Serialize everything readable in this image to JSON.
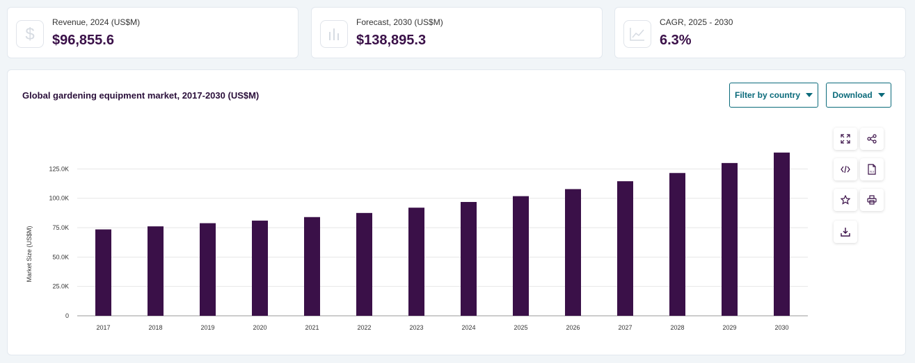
{
  "stats": [
    {
      "label": "Revenue, 2024 (US$M)",
      "value": "$96,855.6",
      "icon": "dollar-icon"
    },
    {
      "label": "Forecast, 2030 (US$M)",
      "value": "$138,895.3",
      "icon": "bar-chart-icon"
    },
    {
      "label": "CAGR, 2025 - 2030",
      "value": "6.3%",
      "icon": "trend-up-icon"
    }
  ],
  "chart": {
    "filter_label": "Filter by country",
    "download_label": "Download"
  },
  "colors": {
    "bar": "#3a1048",
    "accent": "#0a6a7a"
  },
  "tools": [
    "expand-icon",
    "share-icon",
    "embed-code-icon",
    "xls-file-icon",
    "star-icon",
    "print-icon",
    "download-icon"
  ],
  "chart_data": {
    "type": "bar",
    "title": "Global gardening equipment market, 2017-2030 (US$M)",
    "ylabel": "Market Size (US$M)",
    "xlabel": "",
    "categories": [
      "2017",
      "2018",
      "2019",
      "2020",
      "2021",
      "2022",
      "2023",
      "2024",
      "2025",
      "2026",
      "2027",
      "2028",
      "2029",
      "2030"
    ],
    "values": [
      73500,
      76100,
      78800,
      81000,
      84000,
      87500,
      92000,
      96855.6,
      101800,
      107800,
      114500,
      121500,
      130000,
      138895.3
    ],
    "ylim": [
      0,
      150000
    ],
    "yticks": [
      0,
      25000,
      50000,
      75000,
      100000,
      125000
    ],
    "ytick_labels": [
      "0",
      "25.0K",
      "50.0K",
      "75.0K",
      "100.0K",
      "125.0K"
    ],
    "grid": true,
    "legend": "none"
  }
}
